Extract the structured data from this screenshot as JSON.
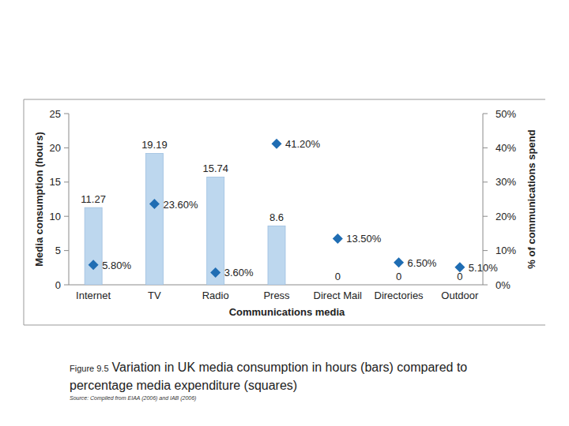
{
  "chart_data": {
    "type": "bar",
    "categories": [
      "Internet",
      "TV",
      "Radio",
      "Press",
      "Direct Mail",
      "Directories",
      "Outdoor"
    ],
    "x_label": "Communications media",
    "y_label": "Media consumption (hours)",
    "y2_label": "% of communications spend",
    "ylim": [
      0,
      25
    ],
    "yticks": [
      0,
      5,
      10,
      15,
      20,
      25
    ],
    "y2lim": [
      0,
      50
    ],
    "y2ticks": [
      {
        "value": 0,
        "label": "0%"
      },
      {
        "value": 10,
        "label": "10%"
      },
      {
        "value": 20,
        "label": "20%"
      },
      {
        "value": 30,
        "label": "30%"
      },
      {
        "value": 40,
        "label": "40%"
      },
      {
        "value": 50,
        "label": "50%"
      }
    ],
    "grid": false,
    "series": [
      {
        "type": "bar",
        "color": "#bdd7ee",
        "values": [
          11.27,
          19.19,
          15.74,
          8.6,
          0,
          0,
          0
        ],
        "data_labels": true
      },
      {
        "type": "scatter",
        "axis": "y2",
        "marker": "diamond",
        "color": "#1f6db3",
        "values": [
          5.8,
          23.6,
          3.6,
          41.2,
          13.5,
          6.5,
          5.1
        ],
        "value_labels": [
          "5.80%",
          "23.60%",
          "3.60%",
          "41.20%",
          "13.50%",
          "6.50%",
          "5.10%"
        ],
        "data_labels": true
      }
    ]
  },
  "caption": {
    "number": "Figure 9.5",
    "text": "Variation in UK media consumption in hours (bars) compared to percentage media expenditure (squares)",
    "source": "Source: Compiled from EIAA (2006) and IAB (2006)"
  }
}
